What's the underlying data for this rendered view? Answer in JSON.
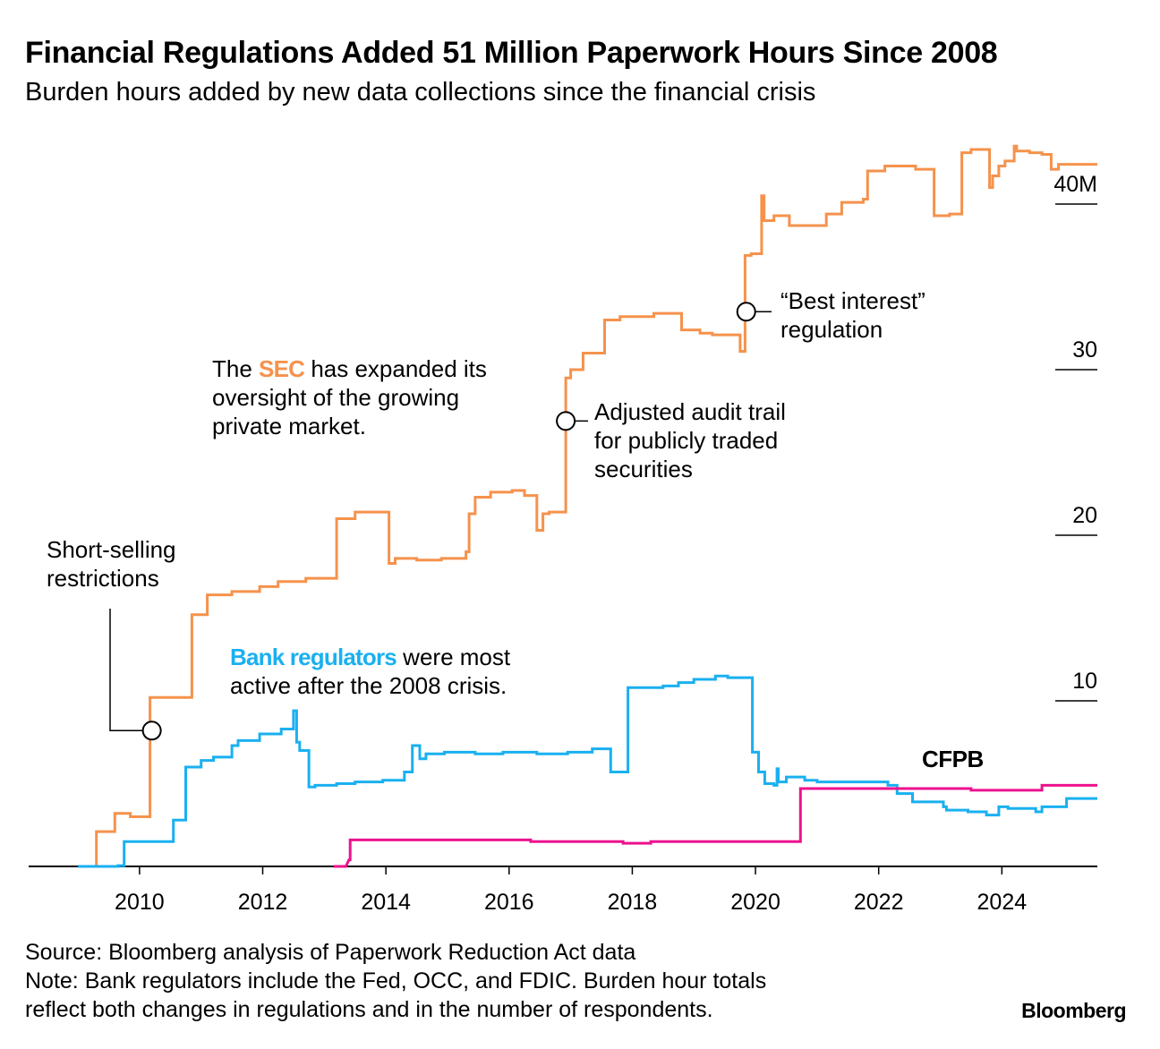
{
  "header": {
    "title": "Financial Regulations Added 51 Million Paperwork Hours Since 2008",
    "subtitle": "Burden hours added by new data collections since the financial crisis"
  },
  "colors": {
    "sec": "#f5924c",
    "bank": "#1ab0f0",
    "cfpb": "#ec128f",
    "text": "#000000"
  },
  "chart_data": {
    "type": "line",
    "title": "Financial Regulations Added 51 Million Paperwork Hours Since 2008",
    "subtitle": "Burden hours added by new data collections since the financial crisis",
    "xlim": [
      2008.2,
      2025.55
    ],
    "ylim": [
      0,
      44
    ],
    "x_ticks": [
      2010,
      2012,
      2014,
      2016,
      2018,
      2020,
      2022,
      2024
    ],
    "x_tick_labels": [
      "2010",
      "2012",
      "2014",
      "2016",
      "2018",
      "2020",
      "2022",
      "2024"
    ],
    "y_ticks": [
      10,
      20,
      30,
      40
    ],
    "y_tick_labels": [
      "10",
      "20",
      "30",
      "40M"
    ],
    "grid": false,
    "series": [
      {
        "key": "sec",
        "name": "SEC",
        "points": [
          [
            2009.15,
            0
          ],
          [
            2009.3,
            0
          ],
          [
            2009.3,
            2.1
          ],
          [
            2009.6,
            2.1
          ],
          [
            2009.6,
            3.2
          ],
          [
            2009.85,
            3.2
          ],
          [
            2009.85,
            3.0
          ],
          [
            2010.17,
            3.0
          ],
          [
            2010.17,
            10.2
          ],
          [
            2010.85,
            10.2
          ],
          [
            2010.85,
            15.2
          ],
          [
            2011.1,
            15.2
          ],
          [
            2011.1,
            16.4
          ],
          [
            2011.5,
            16.4
          ],
          [
            2011.5,
            16.6
          ],
          [
            2011.95,
            16.6
          ],
          [
            2011.95,
            16.9
          ],
          [
            2012.25,
            16.9
          ],
          [
            2012.25,
            17.2
          ],
          [
            2012.7,
            17.2
          ],
          [
            2012.7,
            17.4
          ],
          [
            2013.2,
            17.4
          ],
          [
            2013.2,
            21.0
          ],
          [
            2013.5,
            21.0
          ],
          [
            2013.5,
            21.4
          ],
          [
            2014.05,
            21.4
          ],
          [
            2014.05,
            18.3
          ],
          [
            2014.15,
            18.3
          ],
          [
            2014.15,
            18.6
          ],
          [
            2014.5,
            18.6
          ],
          [
            2014.5,
            18.5
          ],
          [
            2014.9,
            18.5
          ],
          [
            2014.9,
            18.6
          ],
          [
            2015.3,
            18.6
          ],
          [
            2015.3,
            19.0
          ],
          [
            2015.35,
            19.0
          ],
          [
            2015.35,
            21.3
          ],
          [
            2015.45,
            21.3
          ],
          [
            2015.45,
            22.3
          ],
          [
            2015.7,
            22.3
          ],
          [
            2015.7,
            22.6
          ],
          [
            2016.05,
            22.6
          ],
          [
            2016.05,
            22.7
          ],
          [
            2016.25,
            22.7
          ],
          [
            2016.25,
            22.4
          ],
          [
            2016.45,
            22.4
          ],
          [
            2016.45,
            20.3
          ],
          [
            2016.55,
            20.3
          ],
          [
            2016.55,
            21.3
          ],
          [
            2016.65,
            21.3
          ],
          [
            2016.65,
            21.4
          ],
          [
            2016.92,
            21.4
          ],
          [
            2016.92,
            29.5
          ],
          [
            2017.0,
            29.5
          ],
          [
            2017.0,
            30.0
          ],
          [
            2017.2,
            30.0
          ],
          [
            2017.2,
            31.0
          ],
          [
            2017.55,
            31.0
          ],
          [
            2017.55,
            33.0
          ],
          [
            2017.8,
            33.0
          ],
          [
            2017.8,
            33.2
          ],
          [
            2018.35,
            33.2
          ],
          [
            2018.35,
            33.4
          ],
          [
            2018.8,
            33.4
          ],
          [
            2018.8,
            32.4
          ],
          [
            2019.1,
            32.4
          ],
          [
            2019.1,
            32.2
          ],
          [
            2019.3,
            32.2
          ],
          [
            2019.3,
            32.1
          ],
          [
            2019.75,
            32.1
          ],
          [
            2019.75,
            31.1
          ],
          [
            2019.83,
            31.1
          ],
          [
            2019.83,
            36.9
          ],
          [
            2019.93,
            36.9
          ],
          [
            2019.93,
            37.0
          ],
          [
            2020.1,
            37.0
          ],
          [
            2020.1,
            40.5
          ],
          [
            2020.14,
            40.5
          ],
          [
            2020.14,
            39.0
          ],
          [
            2020.3,
            39.0
          ],
          [
            2020.3,
            39.3
          ],
          [
            2020.55,
            39.3
          ],
          [
            2020.55,
            38.7
          ],
          [
            2021.15,
            38.7
          ],
          [
            2021.15,
            39.4
          ],
          [
            2021.4,
            39.4
          ],
          [
            2021.4,
            40.1
          ],
          [
            2021.75,
            40.1
          ],
          [
            2021.75,
            40.3
          ],
          [
            2021.82,
            40.3
          ],
          [
            2021.82,
            42.0
          ],
          [
            2022.1,
            42.0
          ],
          [
            2022.1,
            42.3
          ],
          [
            2022.6,
            42.3
          ],
          [
            2022.6,
            42.1
          ],
          [
            2022.9,
            42.1
          ],
          [
            2022.9,
            39.3
          ],
          [
            2023.15,
            39.3
          ],
          [
            2023.15,
            39.4
          ],
          [
            2023.35,
            39.4
          ],
          [
            2023.35,
            43.1
          ],
          [
            2023.5,
            43.1
          ],
          [
            2023.5,
            43.3
          ],
          [
            2023.8,
            43.3
          ],
          [
            2023.8,
            41.0
          ],
          [
            2023.85,
            41.0
          ],
          [
            2023.85,
            41.7
          ],
          [
            2023.95,
            41.7
          ],
          [
            2023.95,
            42.3
          ],
          [
            2024.05,
            42.3
          ],
          [
            2024.05,
            42.6
          ],
          [
            2024.2,
            42.6
          ],
          [
            2024.2,
            43.5
          ],
          [
            2024.24,
            43.5
          ],
          [
            2024.24,
            43.2
          ],
          [
            2024.45,
            43.2
          ],
          [
            2024.45,
            43.1
          ],
          [
            2024.65,
            43.1
          ],
          [
            2024.65,
            43.0
          ],
          [
            2024.8,
            43.0
          ],
          [
            2024.8,
            42.1
          ],
          [
            2024.92,
            42.1
          ],
          [
            2024.92,
            42.4
          ],
          [
            2025.55,
            42.4
          ]
        ]
      },
      {
        "key": "bank",
        "name": "Bank regulators",
        "points": [
          [
            2009.0,
            0
          ],
          [
            2009.65,
            0
          ],
          [
            2009.65,
            0.05
          ],
          [
            2009.75,
            0.05
          ],
          [
            2009.75,
            1.5
          ],
          [
            2010.55,
            1.5
          ],
          [
            2010.55,
            2.8
          ],
          [
            2010.75,
            2.8
          ],
          [
            2010.75,
            6.0
          ],
          [
            2011.0,
            6.0
          ],
          [
            2011.0,
            6.4
          ],
          [
            2011.2,
            6.4
          ],
          [
            2011.2,
            6.6
          ],
          [
            2011.5,
            6.6
          ],
          [
            2011.5,
            7.3
          ],
          [
            2011.6,
            7.3
          ],
          [
            2011.6,
            7.6
          ],
          [
            2011.95,
            7.6
          ],
          [
            2011.95,
            8.0
          ],
          [
            2012.3,
            8.0
          ],
          [
            2012.3,
            8.3
          ],
          [
            2012.5,
            8.3
          ],
          [
            2012.5,
            9.4
          ],
          [
            2012.55,
            9.4
          ],
          [
            2012.55,
            7.5
          ],
          [
            2012.6,
            7.5
          ],
          [
            2012.6,
            7.0
          ],
          [
            2012.75,
            7.0
          ],
          [
            2012.75,
            4.8
          ],
          [
            2012.85,
            4.8
          ],
          [
            2012.85,
            4.9
          ],
          [
            2013.2,
            4.9
          ],
          [
            2013.2,
            5.0
          ],
          [
            2013.5,
            5.0
          ],
          [
            2013.5,
            5.1
          ],
          [
            2013.95,
            5.1
          ],
          [
            2013.95,
            5.2
          ],
          [
            2014.3,
            5.2
          ],
          [
            2014.3,
            5.7
          ],
          [
            2014.43,
            5.7
          ],
          [
            2014.43,
            7.3
          ],
          [
            2014.55,
            7.3
          ],
          [
            2014.55,
            6.5
          ],
          [
            2014.65,
            6.5
          ],
          [
            2014.65,
            6.8
          ],
          [
            2014.95,
            6.8
          ],
          [
            2014.95,
            6.9
          ],
          [
            2015.45,
            6.9
          ],
          [
            2015.45,
            6.8
          ],
          [
            2015.9,
            6.8
          ],
          [
            2015.9,
            6.9
          ],
          [
            2016.45,
            6.9
          ],
          [
            2016.45,
            6.8
          ],
          [
            2016.95,
            6.8
          ],
          [
            2016.95,
            6.9
          ],
          [
            2017.35,
            6.9
          ],
          [
            2017.35,
            7.1
          ],
          [
            2017.65,
            7.1
          ],
          [
            2017.65,
            5.7
          ],
          [
            2017.93,
            5.7
          ],
          [
            2017.93,
            10.8
          ],
          [
            2018.5,
            10.8
          ],
          [
            2018.5,
            10.9
          ],
          [
            2018.75,
            10.9
          ],
          [
            2018.75,
            11.1
          ],
          [
            2019.0,
            11.1
          ],
          [
            2019.0,
            11.3
          ],
          [
            2019.35,
            11.3
          ],
          [
            2019.35,
            11.5
          ],
          [
            2019.55,
            11.5
          ],
          [
            2019.55,
            11.4
          ],
          [
            2019.95,
            11.4
          ],
          [
            2019.95,
            6.9
          ],
          [
            2020.05,
            6.9
          ],
          [
            2020.05,
            5.7
          ],
          [
            2020.15,
            5.7
          ],
          [
            2020.15,
            5.0
          ],
          [
            2020.3,
            5.0
          ],
          [
            2020.3,
            4.9
          ],
          [
            2020.35,
            4.9
          ],
          [
            2020.35,
            5.9
          ],
          [
            2020.37,
            5.9
          ],
          [
            2020.37,
            5.1
          ],
          [
            2020.5,
            5.1
          ],
          [
            2020.5,
            5.4
          ],
          [
            2020.8,
            5.4
          ],
          [
            2020.8,
            5.2
          ],
          [
            2021.0,
            5.2
          ],
          [
            2021.0,
            5.1
          ],
          [
            2022.15,
            5.1
          ],
          [
            2022.15,
            4.9
          ],
          [
            2022.3,
            4.9
          ],
          [
            2022.3,
            4.4
          ],
          [
            2022.55,
            4.4
          ],
          [
            2022.55,
            3.9
          ],
          [
            2023.05,
            3.9
          ],
          [
            2023.05,
            3.6
          ],
          [
            2023.1,
            3.6
          ],
          [
            2023.1,
            3.4
          ],
          [
            2023.45,
            3.4
          ],
          [
            2023.45,
            3.3
          ],
          [
            2023.75,
            3.3
          ],
          [
            2023.75,
            3.1
          ],
          [
            2023.95,
            3.1
          ],
          [
            2023.95,
            3.6
          ],
          [
            2024.1,
            3.6
          ],
          [
            2024.1,
            3.5
          ],
          [
            2024.55,
            3.5
          ],
          [
            2024.55,
            3.3
          ],
          [
            2024.65,
            3.3
          ],
          [
            2024.65,
            3.6
          ],
          [
            2025.05,
            3.6
          ],
          [
            2025.05,
            4.1
          ],
          [
            2025.55,
            4.1
          ]
        ]
      },
      {
        "key": "cfpb",
        "name": "CFPB",
        "points": [
          [
            2013.15,
            0
          ],
          [
            2013.35,
            0
          ],
          [
            2013.4,
            0.4
          ],
          [
            2013.42,
            0.4
          ],
          [
            2013.42,
            1.6
          ],
          [
            2016.35,
            1.6
          ],
          [
            2016.35,
            1.5
          ],
          [
            2017.85,
            1.5
          ],
          [
            2017.85,
            1.4
          ],
          [
            2018.3,
            1.4
          ],
          [
            2018.3,
            1.5
          ],
          [
            2020.73,
            1.5
          ],
          [
            2020.73,
            4.7
          ],
          [
            2023.5,
            4.7
          ],
          [
            2023.5,
            4.6
          ],
          [
            2024.65,
            4.6
          ],
          [
            2024.65,
            4.9
          ],
          [
            2025.55,
            4.9
          ]
        ]
      }
    ],
    "annotations": [
      {
        "key": "short_selling",
        "x": 2010.2,
        "y": 8.2,
        "lines": [
          "Short-selling",
          "restrictions"
        ]
      },
      {
        "key": "audit_trail",
        "x": 2016.92,
        "y": 26.9,
        "lines": [
          "Adjusted audit trail",
          "for publicly traded",
          "securities"
        ]
      },
      {
        "key": "best_interest",
        "x": 2019.85,
        "y": 33.5,
        "lines": [
          "“Best interest”",
          "regulation"
        ]
      }
    ],
    "callouts": {
      "sec": {
        "highlight": "SEC",
        "before": "The",
        "after": "has expanded its",
        "line2": "oversight of the growing",
        "line3": "private market."
      },
      "bank": {
        "highlight": "Bank regulators",
        "after": "were most",
        "line2": "active after the 2008 crisis."
      },
      "cfpb": {
        "label": "CFPB"
      }
    }
  },
  "footer": {
    "source": "Source: Bloomberg analysis of Paperwork Reduction Act data",
    "note1": "Note: Bank regulators include the Fed, OCC, and FDIC. Burden hour totals",
    "note2": "reflect both changes in regulations and in the number of respondents.",
    "brand": "Bloomberg"
  }
}
